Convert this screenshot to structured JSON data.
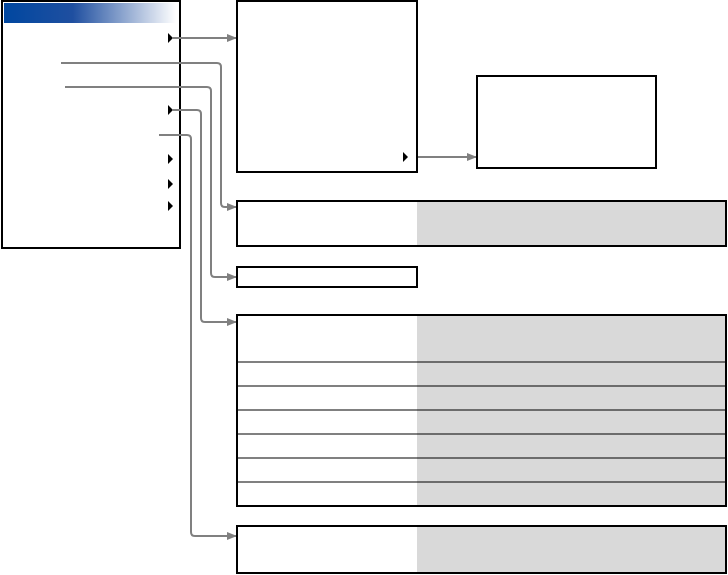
{
  "colors": {
    "border": "#000000",
    "connector": "#808080",
    "value_fill": "#d9d9d9",
    "title_gradient_start": "#0047a0",
    "title_gradient_end": "#ffffff"
  },
  "icons": {
    "submenu_marker": "triangle-right-icon",
    "connector_end": "arrow-right-icon"
  }
}
